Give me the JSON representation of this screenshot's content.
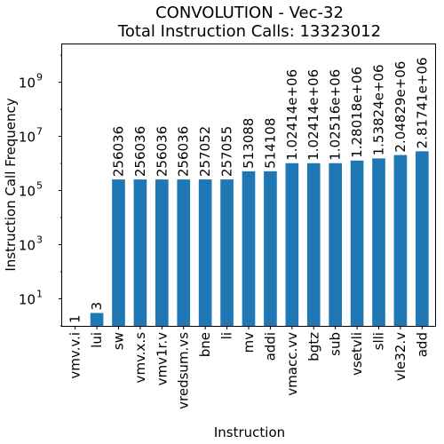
{
  "chart_data": {
    "type": "bar",
    "title": "CONVOLUTION - Vec-32",
    "subtitle": "Total Instruction Calls: 13323012",
    "xlabel": "Instruction",
    "ylabel": "Instruction Call Frequency",
    "yscale": "log",
    "ylim": [
      1,
      25000000000
    ],
    "yticks": [
      {
        "value": 10,
        "base": "10",
        "exp": "1"
      },
      {
        "value": 1000,
        "base": "10",
        "exp": "3"
      },
      {
        "value": 100000,
        "base": "10",
        "exp": "5"
      },
      {
        "value": 10000000,
        "base": "10",
        "exp": "7"
      },
      {
        "value": 1000000000,
        "base": "10",
        "exp": "9"
      }
    ],
    "grid": false,
    "bar_color": "#1f77b4",
    "categories": [
      "vmv.v.i",
      "lui",
      "sw",
      "vmv.x.s",
      "vmv1r.v",
      "vredsum.vs",
      "bne",
      "li",
      "mv",
      "addi",
      "vmacc.vv",
      "bgtz",
      "sub",
      "vsetvli",
      "slli",
      "vle32.v",
      "add"
    ],
    "values": [
      1,
      3,
      256036,
      256036,
      256036,
      256036,
      257052,
      257055,
      513088,
      514108,
      1024140,
      1024140,
      1025160,
      1280180,
      1538240,
      2048290,
      2817410
    ],
    "data_labels": [
      "1",
      "3",
      "256036",
      "256036",
      "256036",
      "256036",
      "257052",
      "257055",
      "513088",
      "514108",
      "1.02414e+06",
      "1.02414e+06",
      "1.02516e+06",
      "1.28018e+06",
      "1.53824e+06",
      "2.04829e+06",
      "2.81741e+06"
    ]
  }
}
